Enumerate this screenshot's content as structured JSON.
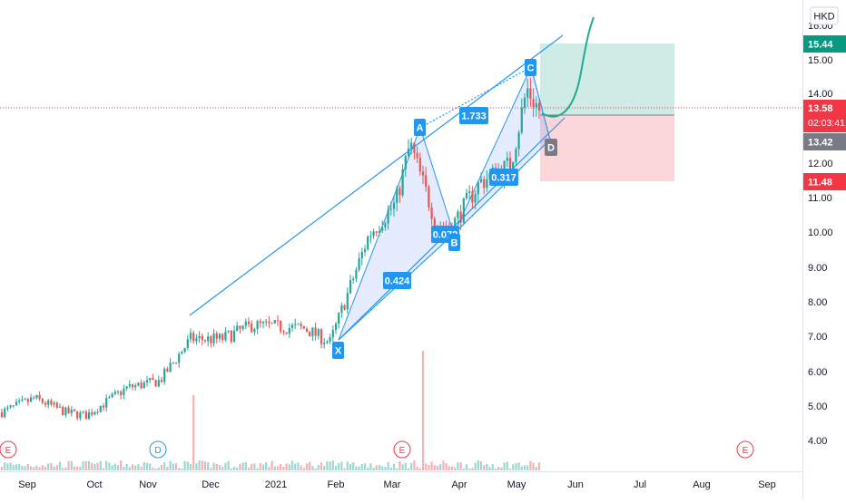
{
  "currency_label": "HKD",
  "axis": {
    "price_ticks": [
      "16.00",
      "15.00",
      "14.00",
      "13.00",
      "12.00",
      "11.00",
      "10.00",
      "9.00",
      "8.00",
      "7.00",
      "6.00",
      "5.00",
      "4.00"
    ],
    "time_ticks": [
      "Sep",
      "Oct",
      "Nov",
      "Dec",
      "2021",
      "Feb",
      "Mar",
      "Apr",
      "May",
      "Jun",
      "Jul",
      "Aug",
      "Sep"
    ]
  },
  "price_labels": {
    "target": {
      "text": "15.44",
      "color": "#089981"
    },
    "last": {
      "text": "13.58",
      "countdown": "02:03:41",
      "color": "#f23645"
    },
    "entry": {
      "text": "13.42",
      "color": "#787b86"
    },
    "stop": {
      "text": "11.48",
      "color": "#f23645"
    }
  },
  "pattern": {
    "points": [
      {
        "label": "X",
        "price": 6.9
      },
      {
        "label": "A",
        "price": 12.6
      },
      {
        "label": "B",
        "price": 10.2
      },
      {
        "label": "C",
        "price": 14.2
      },
      {
        "label": "D",
        "price": 12.8
      }
    ],
    "ratios": [
      "0.424",
      "0.072",
      "1.733",
      "0.317"
    ]
  },
  "event_markers": [
    "E",
    "D",
    "E",
    "E"
  ],
  "chart_data": {
    "type": "candlestick",
    "currency": "HKD",
    "y_range": [
      3.5,
      16.2
    ],
    "last_price": 13.58,
    "entry_price": 13.42,
    "target_price": 15.44,
    "stop_price": 11.48,
    "anchors": [
      {
        "date": "2020-08-25",
        "close": 4.9
      },
      {
        "date": "2020-09-10",
        "close": 5.3
      },
      {
        "date": "2020-09-25",
        "close": 4.9
      },
      {
        "date": "2020-10-05",
        "close": 4.8
      },
      {
        "date": "2020-10-25",
        "close": 5.6
      },
      {
        "date": "2020-11-10",
        "close": 5.8
      },
      {
        "date": "2020-11-25",
        "close": 7.0
      },
      {
        "date": "2020-12-10",
        "close": 7.0
      },
      {
        "date": "2020-12-25",
        "close": 7.4
      },
      {
        "date": "2021-01-20",
        "close": 7.3
      },
      {
        "date": "2021-02-01",
        "close": 6.9
      },
      {
        "date": "2021-02-20",
        "close": 10.0
      },
      {
        "date": "2021-03-05",
        "close": 10.9
      },
      {
        "date": "2021-03-12",
        "close": 12.6
      },
      {
        "date": "2021-03-25",
        "close": 10.3
      },
      {
        "date": "2021-04-01",
        "close": 10.2
      },
      {
        "date": "2021-04-15",
        "close": 11.5
      },
      {
        "date": "2021-04-30",
        "close": 12.0
      },
      {
        "date": "2021-05-08",
        "close": 14.2
      },
      {
        "date": "2021-05-14",
        "close": 13.58
      }
    ],
    "volume_spikes": [
      {
        "date": "2020-11-26",
        "level": "high"
      },
      {
        "date": "2021-03-18",
        "level": "very high"
      }
    ]
  }
}
